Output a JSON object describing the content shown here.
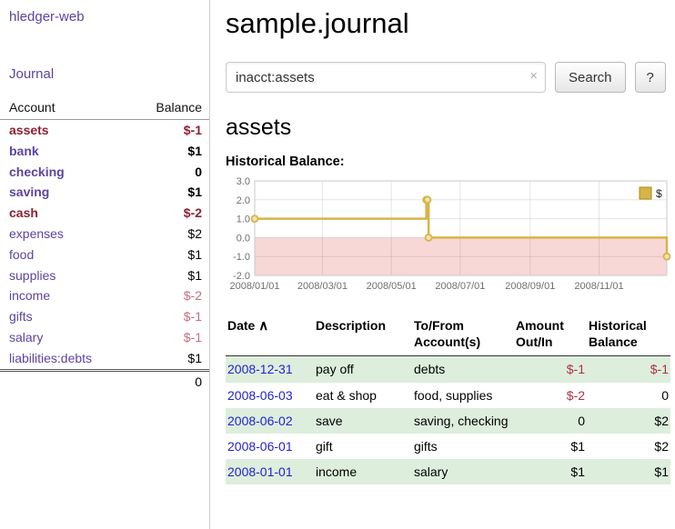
{
  "palette": {
    "link-purple": "#5d43a0",
    "link-blue": "#2323cc",
    "neg-strong": "#8f1f33",
    "neg-soft": "#c36f7f",
    "table-neg": "#b03040",
    "row-green": "#ddeedd",
    "chart-gold": "#d6b447",
    "chart-pink": "#f8d7d7"
  },
  "sidebar": {
    "app_title": "hledger-web",
    "nav": [
      {
        "label": "Journal"
      }
    ],
    "accounts_table": {
      "headers": {
        "account": "Account",
        "balance": "Balance"
      },
      "rows": [
        {
          "name": "assets",
          "balance": "$-1",
          "level": 1,
          "strong": true,
          "negative": true
        },
        {
          "name": "bank",
          "balance": "$1",
          "level": 2,
          "strong": true
        },
        {
          "name": "checking",
          "balance": "0",
          "level": 3,
          "strong": true
        },
        {
          "name": "saving",
          "balance": "$1",
          "level": 3,
          "strong": true
        },
        {
          "name": "cash",
          "balance": "$-2",
          "level": 2,
          "strong": true,
          "negative": true
        },
        {
          "name": "expenses",
          "balance": "$2",
          "level": 1
        },
        {
          "name": "food",
          "balance": "$1",
          "level": 2
        },
        {
          "name": "supplies",
          "balance": "$1",
          "level": 2
        },
        {
          "name": "income",
          "balance": "$-2",
          "level": 1,
          "soft_negative": true
        },
        {
          "name": "gifts",
          "balance": "$-1",
          "level": 2,
          "soft_negative": true
        },
        {
          "name": "salary",
          "balance": "$-1",
          "level": 2,
          "soft_negative": true
        },
        {
          "name": "liabilities:debts",
          "balance": "$1",
          "level": 1
        }
      ],
      "total": "0"
    }
  },
  "main": {
    "title": "sample.journal",
    "search": {
      "value": "inacct:assets",
      "clear_icon": "×",
      "button": "Search",
      "help_button": "?"
    },
    "section_title": "assets",
    "chart_label": "Historical Balance:",
    "register": {
      "headers": {
        "date": "Date",
        "sort_indicator": "∧",
        "description": "Description",
        "account": "To/From Account(s)",
        "amount": "Amount Out/In",
        "balance": "Historical Balance"
      },
      "rows": [
        {
          "date": "2008-12-31",
          "description": "pay off",
          "accounts": "debts",
          "amount": "$-1",
          "balance": "$-1",
          "amount_negative": true,
          "balance_negative": true
        },
        {
          "date": "2008-06-03",
          "description": "eat & shop",
          "accounts": "food, supplies",
          "amount": "$-2",
          "balance": "0",
          "amount_negative": true
        },
        {
          "date": "2008-06-02",
          "description": "save",
          "accounts": "saving, checking",
          "amount": "0",
          "balance": "$2"
        },
        {
          "date": "2008-06-01",
          "description": "gift",
          "accounts": "gifts",
          "amount": "$1",
          "balance": "$2"
        },
        {
          "date": "2008-01-01",
          "description": "income",
          "accounts": "salary",
          "amount": "$1",
          "balance": "$1"
        }
      ]
    }
  },
  "chart_data": {
    "type": "line",
    "title": "Historical Balance:",
    "step": true,
    "x_range": [
      "2008-01-01",
      "2008-12-31"
    ],
    "ylim": [
      -2,
      3
    ],
    "y_ticks": [
      3.0,
      2.0,
      1.0,
      0.0,
      -1.0,
      -2.0
    ],
    "x_ticks": [
      "2008/01/01",
      "2008/03/01",
      "2008/05/01",
      "2008/07/01",
      "2008/09/01",
      "2008/11/01"
    ],
    "grid": true,
    "legend_position": "top-right",
    "negative_region_fill": "#f8d7d7",
    "series": [
      {
        "name": "$",
        "color": "#d6b447",
        "marker_fill": "#f3e3af",
        "points": [
          {
            "date": "2008-01-01",
            "value": 1
          },
          {
            "date": "2008-06-01",
            "value": 2
          },
          {
            "date": "2008-06-02",
            "value": 2
          },
          {
            "date": "2008-06-03",
            "value": 0
          },
          {
            "date": "2008-12-31",
            "value": -1
          }
        ]
      }
    ]
  }
}
